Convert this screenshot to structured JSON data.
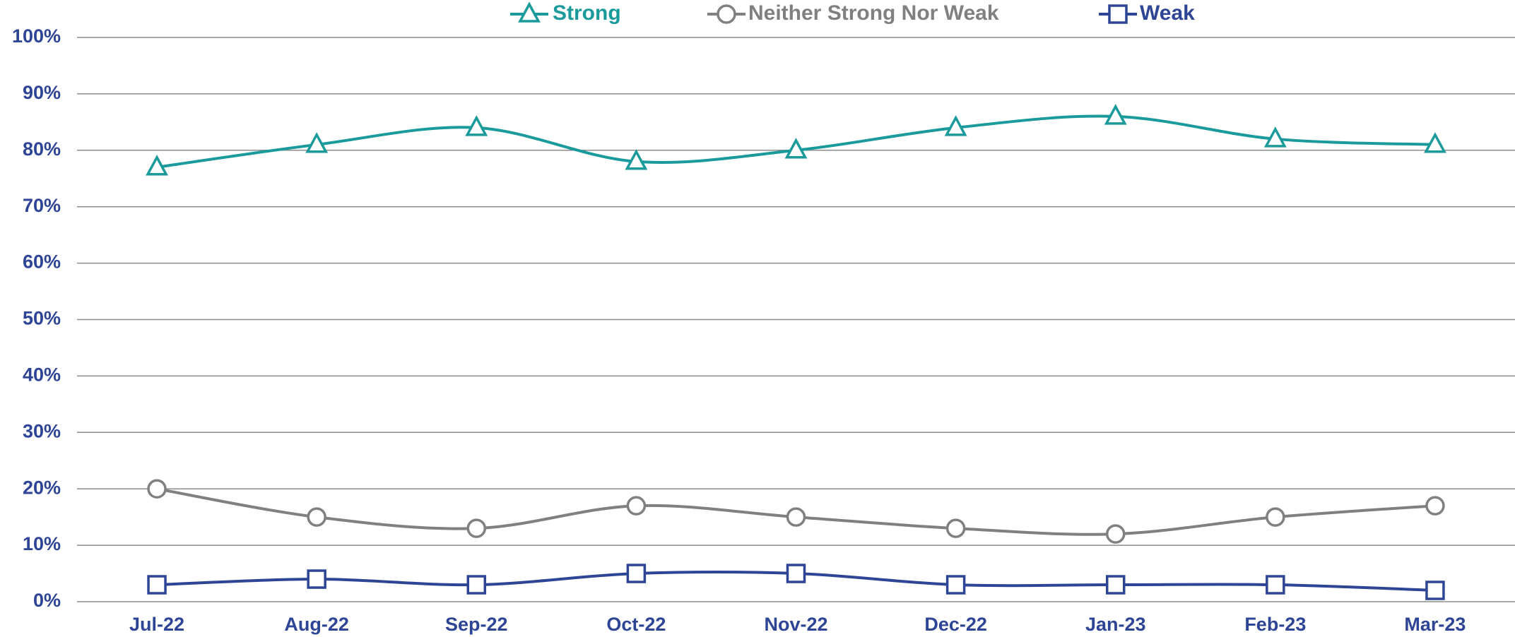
{
  "chart_data": {
    "type": "line",
    "categories": [
      "Jul-22",
      "Aug-22",
      "Sep-22",
      "Oct-22",
      "Nov-22",
      "Dec-22",
      "Jan-23",
      "Feb-23",
      "Mar-23"
    ],
    "series": [
      {
        "name": "Strong",
        "color": "#1a9a9a",
        "marker": "triangle",
        "values": [
          77,
          81,
          84,
          78,
          80,
          84,
          86,
          82,
          81
        ]
      },
      {
        "name": "Neither Strong Nor Weak",
        "color": "#808080",
        "marker": "circle",
        "values": [
          20,
          15,
          13,
          17,
          15,
          13,
          12,
          15,
          17
        ]
      },
      {
        "name": "Weak",
        "color": "#2e4596",
        "marker": "square",
        "values": [
          3,
          4,
          3,
          5,
          5,
          3,
          3,
          3,
          2
        ]
      }
    ],
    "ylim": [
      0,
      100
    ],
    "yticks": [
      {
        "value": 0,
        "label": "0%"
      },
      {
        "value": 10,
        "label": "10%"
      },
      {
        "value": 20,
        "label": "20%"
      },
      {
        "value": 30,
        "label": "30%"
      },
      {
        "value": 40,
        "label": "40%"
      },
      {
        "value": 50,
        "label": "50%"
      },
      {
        "value": 60,
        "label": "60%"
      },
      {
        "value": 70,
        "label": "70%"
      },
      {
        "value": 80,
        "label": "80%"
      },
      {
        "value": 90,
        "label": "90%"
      },
      {
        "value": 100,
        "label": "100%"
      }
    ],
    "grid": true,
    "smooth": true,
    "legend": "top"
  }
}
